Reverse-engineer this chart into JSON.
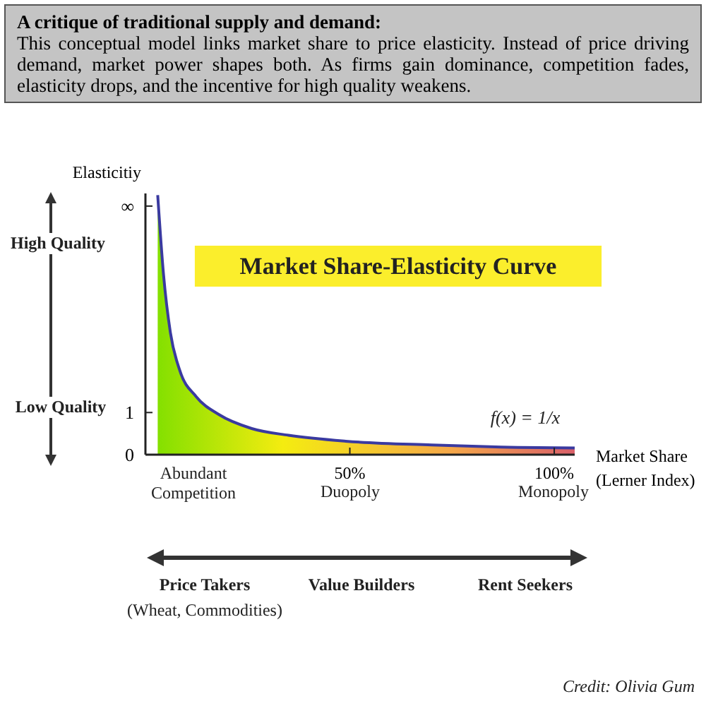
{
  "chart_data": {
    "type": "area",
    "title": "A critique of traditional supply and demand:",
    "subtitle": "This conceptual model links market share to price elasticity. Instead of price driving demand, market power shapes both. As firms gain dominance, competition fades, elasticity drops, and the incentive for high quality weakens.",
    "xlabel": "Market Share (Lerner Index)",
    "ylabel": "Elasticitiy",
    "xlim": [
      0,
      105
    ],
    "xticks": [
      {
        "value": 50,
        "label": "50%"
      },
      {
        "value": 100,
        "label": "100%"
      }
    ],
    "ylim": [
      0,
      6.2
    ],
    "yticks": [
      0,
      1,
      {
        "value": 5.9,
        "label": "∞"
      }
    ],
    "series": [
      {
        "color": "#3a3aa0",
        "x": [
          3,
          4.4,
          6.1,
          8.4,
          12.4,
          18,
          26,
          35,
          49,
          70,
          87,
          105
        ],
        "values": [
          6.16,
          4.3,
          2.9,
          2.0,
          1.38,
          0.95,
          0.62,
          0.46,
          0.32,
          0.23,
          0.18,
          0.16
        ]
      }
    ],
    "annotations": [
      "Market Share-Elasticity Curve",
      "f(x) = 1/x",
      "High Quality",
      "Low Quality",
      "Abundant Competition",
      "Duopoly",
      "Monopoly",
      "Price Takers",
      "(Wheat, Commodities)",
      "Value Builders",
      "Rent Seekers",
      "Credit: Olivia Gum"
    ]
  }
}
